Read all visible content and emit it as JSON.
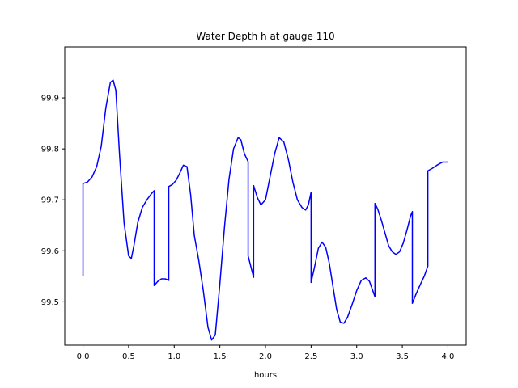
{
  "chart_data": {
    "type": "line",
    "title": "Water Depth h at gauge 110",
    "xlabel": "hours",
    "ylabel": "",
    "xlim": [
      -0.2,
      4.2
    ],
    "ylim": [
      99.415,
      100.0
    ],
    "grid": false,
    "legend": "none",
    "x_ticks": [
      0.0,
      0.5,
      1.0,
      1.5,
      2.0,
      2.5,
      3.0,
      3.5,
      4.0
    ],
    "x_tick_labels": [
      "0.0",
      "0.5",
      "1.0",
      "1.5",
      "2.0",
      "2.5",
      "3.0",
      "3.5",
      "4.0"
    ],
    "y_ticks": [
      99.5,
      99.6,
      99.7,
      99.8,
      99.9
    ],
    "y_tick_labels": [
      "99.5",
      "99.6",
      "99.7",
      "99.8",
      "99.9"
    ],
    "colors": {
      "line": "#0000ff",
      "axes": "#000000",
      "background": "#ffffff"
    },
    "series": [
      {
        "x": [
          0.0,
          0.0,
          0.05,
          0.1,
          0.15,
          0.2,
          0.25,
          0.3,
          0.33,
          0.36,
          0.4,
          0.45,
          0.5,
          0.53,
          0.56,
          0.6,
          0.65,
          0.7,
          0.75,
          0.78,
          0.78,
          0.82,
          0.86,
          0.9,
          0.93,
          0.94,
          0.94,
          0.98,
          1.02,
          1.06,
          1.1,
          1.14,
          1.18,
          1.22,
          1.27,
          1.32,
          1.37,
          1.41,
          1.45,
          1.5,
          1.55,
          1.6,
          1.65,
          1.7,
          1.73,
          1.77,
          1.81,
          1.81,
          1.85,
          1.87,
          1.87,
          1.91,
          1.95,
          2.0,
          2.05,
          2.1,
          2.15,
          2.2,
          2.25,
          2.3,
          2.35,
          2.4,
          2.44,
          2.47,
          2.5,
          2.5,
          2.54,
          2.58,
          2.62,
          2.66,
          2.7,
          2.74,
          2.78,
          2.82,
          2.86,
          2.9,
          2.95,
          3.0,
          3.05,
          3.1,
          3.14,
          3.18,
          3.2,
          3.2,
          3.23,
          3.27,
          3.31,
          3.35,
          3.39,
          3.43,
          3.47,
          3.51,
          3.55,
          3.59,
          3.61,
          3.61,
          3.65,
          3.7,
          3.74,
          3.78,
          3.78,
          3.83,
          3.88,
          3.94,
          4.0
        ],
        "y": [
          99.55,
          99.732,
          99.735,
          99.745,
          99.765,
          99.805,
          99.88,
          99.93,
          99.935,
          99.915,
          99.79,
          99.655,
          99.59,
          99.585,
          99.612,
          99.655,
          99.685,
          99.7,
          99.712,
          99.718,
          99.532,
          99.54,
          99.545,
          99.545,
          99.543,
          99.542,
          99.726,
          99.73,
          99.738,
          99.752,
          99.768,
          99.765,
          99.71,
          99.63,
          99.58,
          99.52,
          99.45,
          99.425,
          99.435,
          99.535,
          99.645,
          99.74,
          99.8,
          99.822,
          99.818,
          99.79,
          99.775,
          99.59,
          99.562,
          99.548,
          99.728,
          99.705,
          99.69,
          99.7,
          99.745,
          99.79,
          99.822,
          99.814,
          99.78,
          99.735,
          99.7,
          99.685,
          99.68,
          99.69,
          99.715,
          99.538,
          99.57,
          99.605,
          99.617,
          99.607,
          99.575,
          99.53,
          99.485,
          99.46,
          99.458,
          99.47,
          99.495,
          99.522,
          99.542,
          99.547,
          99.54,
          99.52,
          99.51,
          99.693,
          99.682,
          99.66,
          99.635,
          99.61,
          99.598,
          99.593,
          99.598,
          99.615,
          99.64,
          99.668,
          99.677,
          99.497,
          99.515,
          99.535,
          99.55,
          99.57,
          99.757,
          99.762,
          99.768,
          99.774,
          99.774
        ]
      }
    ]
  }
}
